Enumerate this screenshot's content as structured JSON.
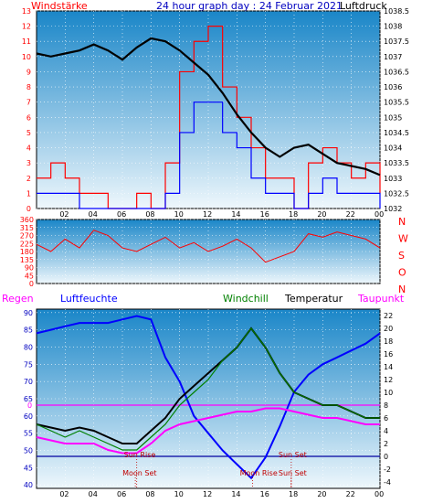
{
  "header": {
    "left_label": "Windstärke",
    "title": "24 hour graph day : 24 Februar 2021",
    "right_label": "Luftdruck"
  },
  "colors": {
    "wind": "#ff0000",
    "gust_blue": "#0000ff",
    "pressure": "#000000",
    "humidity": "#0000ff",
    "windchill": "#008000",
    "temperature": "#000000",
    "dewpoint": "#ff00ff",
    "rain": "#ff00ff",
    "sun_marker": "#c00000",
    "panel_top": "#1a86c8",
    "panel_bottom": "#eef7fc"
  },
  "x_ticks": [
    "02",
    "04",
    "06",
    "08",
    "10",
    "12",
    "14",
    "16",
    "18",
    "20",
    "22",
    "00"
  ],
  "chart_data": [
    {
      "type": "line",
      "panel": "wind_pressure",
      "left_axis": {
        "label": "Windstärke",
        "ticks": [
          0,
          1,
          2,
          3,
          4,
          5,
          6,
          7,
          8,
          9,
          10,
          11,
          12,
          13
        ],
        "ylim": [
          0,
          13
        ]
      },
      "right_axis": {
        "label": "Luftdruck",
        "ticks": [
          1032,
          1032.5,
          1033,
          1033.5,
          1034,
          1034.5,
          1035,
          1035.5,
          1036,
          1036.5,
          1037,
          1037.5,
          1038,
          1038.5
        ],
        "ylim": [
          1032,
          1038.5
        ]
      },
      "series": [
        {
          "name": "Luftdruck",
          "axis": "right",
          "x": [
            0,
            1,
            2,
            3,
            4,
            5,
            6,
            7,
            8,
            9,
            10,
            11,
            12,
            13,
            14,
            15,
            16,
            17,
            18,
            19,
            20,
            21,
            22,
            23,
            24
          ],
          "values": [
            1037.1,
            1037.0,
            1037.1,
            1037.2,
            1037.4,
            1037.2,
            1036.9,
            1037.3,
            1037.6,
            1037.5,
            1037.2,
            1036.8,
            1036.4,
            1035.8,
            1035.1,
            1034.5,
            1034.0,
            1033.7,
            1034.0,
            1034.1,
            1033.8,
            1033.5,
            1033.4,
            1033.3,
            1033.1
          ]
        },
        {
          "name": "Windstärke",
          "axis": "left",
          "x": [
            0,
            1,
            2,
            3,
            4,
            5,
            6,
            7,
            8,
            9,
            10,
            11,
            12,
            13,
            14,
            15,
            16,
            17,
            18,
            19,
            20,
            21,
            22,
            23,
            24
          ],
          "values": [
            2,
            3,
            2,
            1,
            1,
            0,
            0,
            1,
            0,
            3,
            9,
            11,
            12,
            8,
            6,
            4,
            2,
            2,
            0,
            3,
            4,
            3,
            2,
            3,
            1
          ]
        },
        {
          "name": "Windstärke (mittel)",
          "axis": "left",
          "x": [
            0,
            1,
            2,
            3,
            4,
            5,
            6,
            7,
            8,
            9,
            10,
            11,
            12,
            13,
            14,
            15,
            16,
            17,
            18,
            19,
            20,
            21,
            22,
            23,
            24
          ],
          "values": [
            1,
            1,
            1,
            0,
            0,
            0,
            0,
            0,
            0,
            1,
            5,
            7,
            7,
            5,
            4,
            2,
            1,
            1,
            0,
            1,
            2,
            1,
            1,
            1,
            0
          ]
        }
      ]
    },
    {
      "type": "line",
      "panel": "wind_direction",
      "left_axis": {
        "ticks": [
          0,
          45,
          90,
          135,
          180,
          225,
          270,
          315,
          360
        ],
        "ylim": [
          0,
          360
        ]
      },
      "right_axis": {
        "ticks": [
          "N",
          "W",
          "S",
          "O",
          "N"
        ]
      },
      "series": [
        {
          "x": [
            0,
            1,
            2,
            3,
            4,
            5,
            6,
            7,
            8,
            9,
            10,
            11,
            12,
            13,
            14,
            15,
            16,
            17,
            18,
            19,
            20,
            21,
            22,
            23,
            24
          ],
          "values": [
            220,
            180,
            250,
            200,
            300,
            270,
            200,
            180,
            220,
            260,
            200,
            230,
            180,
            210,
            250,
            200,
            120,
            150,
            180,
            280,
            260,
            290,
            270,
            250,
            200
          ]
        }
      ]
    },
    {
      "type": "line",
      "panel": "temperature_humidity",
      "legend": [
        "Regen",
        "Luftfeuchte",
        "Windchill",
        "Temperatur",
        "Taupunkt"
      ],
      "left_axis": {
        "label": "Luftfeuchte",
        "ticks": [
          40,
          45,
          50,
          55,
          60,
          65,
          70,
          75,
          80,
          85,
          90
        ],
        "ylim": [
          39,
          91
        ]
      },
      "right_axis": {
        "ticks": [
          -4,
          -2,
          0,
          2,
          4,
          6,
          8,
          10,
          12,
          14,
          16,
          18,
          20,
          22
        ],
        "ylim": [
          -5,
          23
        ]
      },
      "series": [
        {
          "name": "Luftfeuchte",
          "axis": "left",
          "x": [
            0,
            1,
            2,
            3,
            4,
            5,
            6,
            7,
            8,
            9,
            10,
            11,
            12,
            13,
            14,
            15,
            16,
            17,
            18,
            19,
            20,
            21,
            22,
            23,
            24
          ],
          "values": [
            84,
            85,
            86,
            87,
            87,
            87,
            88,
            89,
            88,
            77,
            70,
            60,
            55,
            50,
            46,
            42,
            48,
            57,
            67,
            72,
            75,
            77,
            79,
            81,
            84
          ]
        },
        {
          "name": "Temperatur",
          "axis": "right",
          "x": [
            0,
            1,
            2,
            3,
            4,
            5,
            6,
            7,
            8,
            9,
            10,
            11,
            12,
            13,
            14,
            15,
            16,
            17,
            18,
            19,
            20,
            21,
            22,
            23,
            24
          ],
          "values": [
            5,
            4.5,
            4,
            4.5,
            4,
            3,
            2,
            2,
            4,
            6,
            9,
            11,
            13,
            15,
            17,
            20,
            17,
            13,
            10,
            9,
            8,
            8,
            7,
            6,
            6
          ]
        },
        {
          "name": "Windchill",
          "axis": "right",
          "x": [
            0,
            1,
            2,
            3,
            4,
            5,
            6,
            7,
            8,
            9,
            10,
            11,
            12,
            13,
            14,
            15,
            16,
            17,
            18,
            19,
            20,
            21,
            22,
            23,
            24
          ],
          "values": [
            5,
            4,
            3,
            4,
            3,
            2,
            1,
            1,
            3,
            5,
            8,
            10,
            12,
            15,
            17,
            20,
            17,
            13,
            10,
            9,
            8,
            8,
            7,
            6,
            6
          ]
        },
        {
          "name": "Taupunkt",
          "axis": "right",
          "x": [
            0,
            1,
            2,
            3,
            4,
            5,
            6,
            7,
            8,
            9,
            10,
            11,
            12,
            13,
            14,
            15,
            16,
            17,
            18,
            19,
            20,
            21,
            22,
            23,
            24
          ],
          "values": [
            3,
            2.5,
            2,
            2,
            2,
            1,
            0.5,
            0.5,
            2,
            4,
            5,
            5.5,
            6,
            6.5,
            7,
            7,
            7.5,
            7.5,
            7,
            6.5,
            6,
            6,
            5.5,
            5,
            5
          ]
        }
      ],
      "reference_lines": [
        {
          "label": "0",
          "value": 0,
          "color": "#0000a0"
        },
        {
          "label": "0",
          "value": 8,
          "color": "#ff00ff"
        }
      ],
      "annotations": [
        {
          "text": "Sun Rise",
          "x": 7.0
        },
        {
          "text": "Moon Set",
          "x": 6.9
        },
        {
          "text": "Moon Rise",
          "x": 15.1
        },
        {
          "text": "Sun Set",
          "x": 17.8
        },
        {
          "text": "Sun Set",
          "x": 17.8
        }
      ]
    }
  ]
}
